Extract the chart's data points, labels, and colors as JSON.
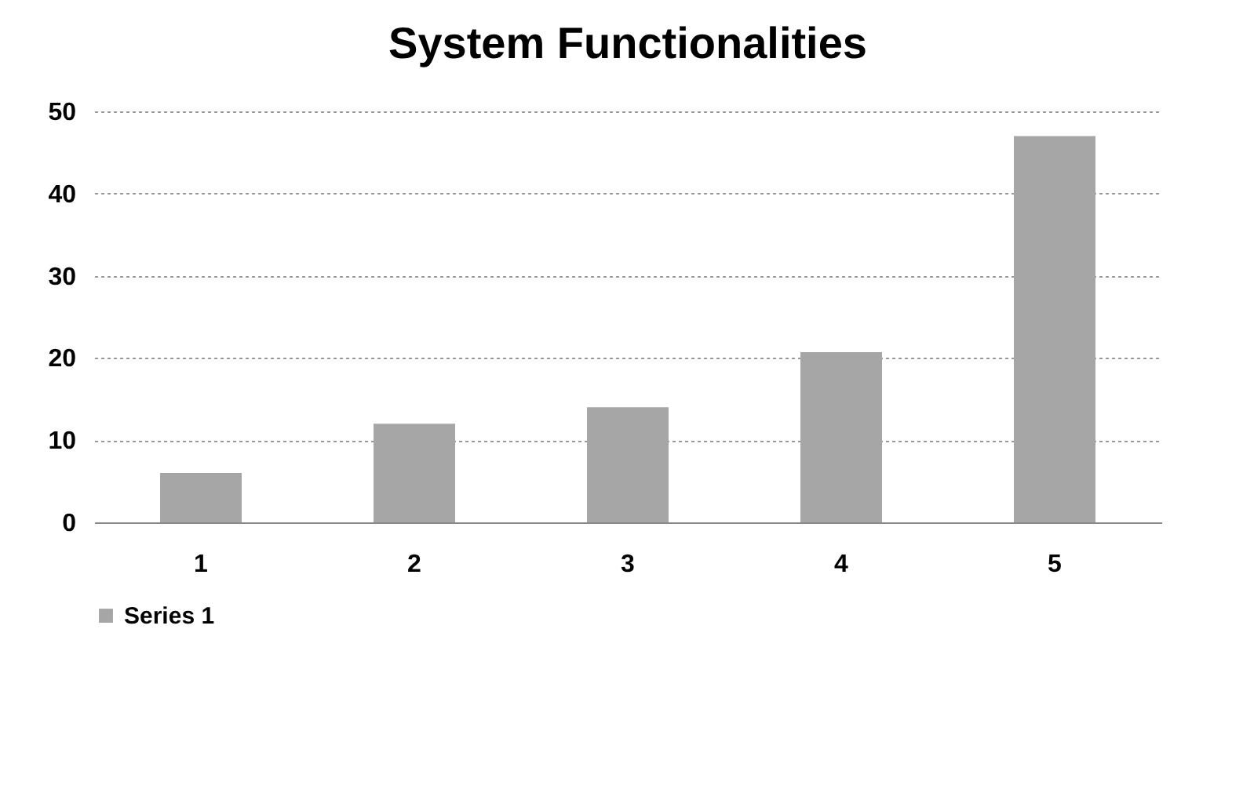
{
  "chart_data": {
    "type": "bar",
    "title": "System Functionalities",
    "categories": [
      "1",
      "2",
      "3",
      "4",
      "5"
    ],
    "series": [
      {
        "name": "Series 1",
        "color": "#a6a6a6",
        "values": [
          6,
          12,
          14,
          20.7,
          47
        ]
      }
    ],
    "ylim": [
      0,
      50
    ],
    "yticks": [
      0,
      10,
      20,
      30,
      40,
      50
    ],
    "grid": "y",
    "legend": "bottom"
  }
}
